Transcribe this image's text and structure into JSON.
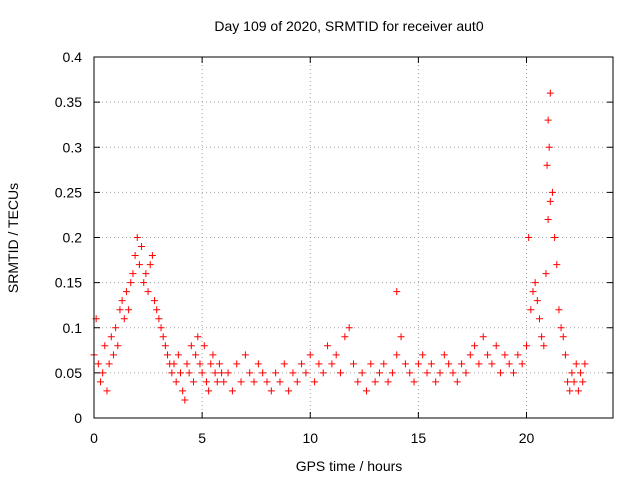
{
  "chart_data": {
    "type": "scatter",
    "title": "Day 109 of 2020, SRMTID for receiver aut0",
    "xlabel": "GPS time / hours",
    "ylabel": "SRMTID / TECUs",
    "xlim": [
      0,
      24
    ],
    "ylim": [
      0,
      0.4
    ],
    "xticks": [
      0,
      5,
      10,
      15,
      20
    ],
    "yticks": [
      0,
      0.05,
      0.1,
      0.15,
      0.2,
      0.25,
      0.3,
      0.35,
      0.4
    ],
    "xtick_labels": [
      "0",
      "5",
      "10",
      "15",
      "20"
    ],
    "ytick_labels": [
      "0",
      "0.05",
      "0.1",
      "0.15",
      "0.2",
      "0.25",
      "0.3",
      "0.35",
      "0.4"
    ],
    "grid": true,
    "marker": "+",
    "color": "#ff0000",
    "series": [
      {
        "name": "SRMTID",
        "x": [
          0.0,
          0.1,
          0.2,
          0.3,
          0.4,
          0.5,
          0.6,
          0.7,
          0.8,
          0.9,
          1.0,
          1.1,
          1.2,
          1.3,
          1.4,
          1.5,
          1.6,
          1.7,
          1.8,
          1.9,
          2.0,
          2.1,
          2.2,
          2.3,
          2.4,
          2.5,
          2.6,
          2.7,
          2.8,
          2.9,
          3.0,
          3.1,
          3.2,
          3.3,
          3.4,
          3.5,
          3.6,
          3.7,
          3.8,
          3.9,
          4.0,
          4.1,
          4.2,
          4.3,
          4.4,
          4.5,
          4.6,
          4.7,
          4.8,
          4.9,
          5.0,
          5.1,
          5.2,
          5.3,
          5.4,
          5.5,
          5.6,
          5.7,
          5.8,
          5.9,
          6.0,
          6.2,
          6.4,
          6.6,
          6.8,
          7.0,
          7.2,
          7.4,
          7.6,
          7.8,
          8.0,
          8.2,
          8.4,
          8.6,
          8.8,
          9.0,
          9.2,
          9.4,
          9.6,
          9.8,
          10.0,
          10.2,
          10.4,
          10.6,
          10.8,
          11.0,
          11.2,
          11.4,
          11.6,
          11.8,
          12.0,
          12.2,
          12.4,
          12.6,
          12.8,
          13.0,
          13.2,
          13.4,
          13.6,
          13.8,
          14.0,
          14.2,
          14.4,
          14.6,
          14.8,
          15.0,
          15.2,
          15.4,
          15.6,
          15.8,
          16.0,
          16.2,
          16.4,
          16.6,
          16.8,
          17.0,
          17.2,
          17.4,
          17.6,
          17.8,
          18.0,
          18.2,
          18.4,
          18.6,
          18.8,
          19.0,
          19.2,
          19.4,
          19.6,
          19.8,
          20.0,
          20.1,
          20.2,
          20.3,
          20.4,
          20.5,
          20.6,
          20.7,
          20.8,
          20.9,
          21.0,
          21.1,
          21.2,
          21.3,
          21.4,
          21.5,
          21.6,
          21.7,
          21.8,
          21.9,
          22.0,
          22.1,
          22.2,
          22.3,
          22.4,
          22.5,
          22.6,
          22.7,
          14.0,
          21.0,
          21.05,
          20.95,
          21.1
        ],
        "y": [
          0.07,
          0.11,
          0.06,
          0.04,
          0.05,
          0.08,
          0.03,
          0.06,
          0.09,
          0.07,
          0.1,
          0.08,
          0.12,
          0.13,
          0.11,
          0.14,
          0.12,
          0.15,
          0.16,
          0.18,
          0.2,
          0.17,
          0.19,
          0.15,
          0.16,
          0.14,
          0.17,
          0.18,
          0.13,
          0.12,
          0.11,
          0.1,
          0.09,
          0.08,
          0.07,
          0.06,
          0.05,
          0.06,
          0.04,
          0.07,
          0.05,
          0.03,
          0.02,
          0.06,
          0.05,
          0.08,
          0.04,
          0.07,
          0.09,
          0.06,
          0.05,
          0.08,
          0.04,
          0.03,
          0.06,
          0.07,
          0.05,
          0.04,
          0.06,
          0.05,
          0.04,
          0.05,
          0.03,
          0.06,
          0.04,
          0.07,
          0.05,
          0.04,
          0.06,
          0.05,
          0.04,
          0.03,
          0.05,
          0.04,
          0.06,
          0.03,
          0.05,
          0.04,
          0.06,
          0.05,
          0.07,
          0.04,
          0.06,
          0.05,
          0.08,
          0.06,
          0.07,
          0.05,
          0.09,
          0.1,
          0.06,
          0.04,
          0.05,
          0.03,
          0.06,
          0.04,
          0.05,
          0.06,
          0.04,
          0.05,
          0.07,
          0.09,
          0.06,
          0.05,
          0.04,
          0.06,
          0.07,
          0.05,
          0.06,
          0.04,
          0.05,
          0.07,
          0.06,
          0.05,
          0.04,
          0.06,
          0.05,
          0.07,
          0.08,
          0.06,
          0.09,
          0.07,
          0.06,
          0.08,
          0.05,
          0.07,
          0.06,
          0.05,
          0.07,
          0.06,
          0.08,
          0.2,
          0.12,
          0.14,
          0.15,
          0.13,
          0.11,
          0.09,
          0.08,
          0.16,
          0.22,
          0.36,
          0.25,
          0.2,
          0.17,
          0.12,
          0.1,
          0.09,
          0.07,
          0.04,
          0.03,
          0.05,
          0.04,
          0.06,
          0.03,
          0.05,
          0.04,
          0.06,
          0.14,
          0.33,
          0.3,
          0.28,
          0.24
        ]
      }
    ]
  }
}
